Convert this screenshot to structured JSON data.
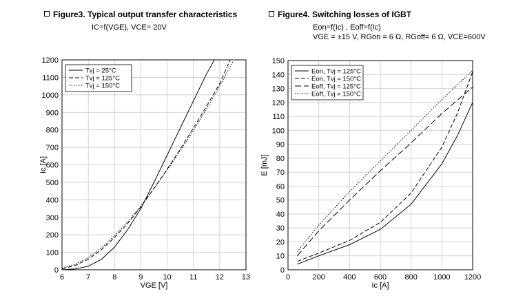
{
  "figure3": {
    "marker": "square-icon",
    "title": "Figure3. Typical output transfer characteristics",
    "subtitle": "IC=f(VGE), VCE= 20V"
  },
  "figure4": {
    "marker": "square-icon",
    "title": "Figure4. Switching losses of IGBT",
    "subtitle_line1": "Eon=f(Ic) , Eoff=f(Ic)",
    "subtitle_line2": "VGE = ±15 V, RGon = 6 Ω, RGoff= 6 Ω, VCE=600V"
  },
  "chart_data": [
    {
      "type": "line",
      "title": "Figure3. Typical output transfer characteristics",
      "xlabel": "VGE [V]",
      "ylabel": "Ic [A]",
      "xlim": [
        6,
        13
      ],
      "ylim": [
        0,
        1200
      ],
      "xticks": [
        6,
        7,
        8,
        9,
        10,
        11,
        12,
        13
      ],
      "yticks": [
        0,
        100,
        200,
        300,
        400,
        500,
        600,
        700,
        800,
        900,
        1000,
        1100,
        1200
      ],
      "grid": true,
      "legend": "top-left",
      "series": [
        {
          "name": "Tvj = 25°C",
          "style": "solid",
          "x": [
            6.0,
            6.5,
            7.0,
            7.5,
            8.0,
            8.5,
            9.0,
            9.5,
            10.0,
            10.5,
            11.0,
            11.5,
            11.8
          ],
          "y": [
            0,
            5,
            20,
            60,
            130,
            230,
            350,
            500,
            655,
            810,
            965,
            1120,
            1200
          ]
        },
        {
          "name": "Tvj = 125°C",
          "style": "dashed",
          "x": [
            6.0,
            6.5,
            7.0,
            7.5,
            8.0,
            8.5,
            9.0,
            9.5,
            10.0,
            10.5,
            11.0,
            11.5,
            12.0,
            12.4
          ],
          "y": [
            5,
            25,
            60,
            115,
            185,
            265,
            360,
            465,
            575,
            690,
            810,
            935,
            1065,
            1200
          ]
        },
        {
          "name": "Tvj = 150°C",
          "style": "dotted",
          "x": [
            6.0,
            6.5,
            7.0,
            7.5,
            8.0,
            8.5,
            9.0,
            9.5,
            10.0,
            10.5,
            11.0,
            11.5,
            12.0,
            12.5
          ],
          "y": [
            10,
            32,
            70,
            125,
            195,
            275,
            365,
            465,
            570,
            680,
            795,
            920,
            1050,
            1190
          ]
        }
      ]
    },
    {
      "type": "line",
      "title": "Figure4. Switching losses of IGBT",
      "xlabel": "Ic [A]",
      "ylabel": "E [mJ]",
      "xlim": [
        0,
        1200
      ],
      "ylim": [
        0,
        150
      ],
      "xticks": [
        0,
        200,
        400,
        600,
        800,
        1000,
        1200
      ],
      "yticks": [
        0,
        10,
        20,
        30,
        40,
        50,
        60,
        70,
        80,
        90,
        100,
        110,
        120,
        130,
        140,
        150
      ],
      "grid": true,
      "legend": "top-left",
      "series": [
        {
          "name": "Eon, Tvj = 125°C",
          "style": "solid",
          "x": [
            60,
            200,
            400,
            600,
            800,
            1000,
            1100,
            1200
          ],
          "y": [
            4,
            10,
            18,
            29,
            47,
            76,
            96,
            120
          ]
        },
        {
          "name": "Eon, Tvj = 150°C",
          "style": "dashed",
          "x": [
            60,
            200,
            400,
            600,
            800,
            1000,
            1100,
            1200
          ],
          "y": [
            6,
            12,
            21,
            34,
            55,
            88,
            112,
            142
          ]
        },
        {
          "name": "Eoff, Tvj = 125°C",
          "style": "longdash",
          "x": [
            60,
            200,
            400,
            600,
            800,
            1000,
            1200
          ],
          "y": [
            10,
            28,
            50,
            71,
            91,
            112,
            131
          ]
        },
        {
          "name": "Eoff, Tvj = 150°C",
          "style": "dotted",
          "x": [
            60,
            200,
            400,
            600,
            800,
            1000,
            1200
          ],
          "y": [
            13,
            32,
            56,
            78,
            100,
            122,
            143
          ]
        }
      ]
    }
  ]
}
